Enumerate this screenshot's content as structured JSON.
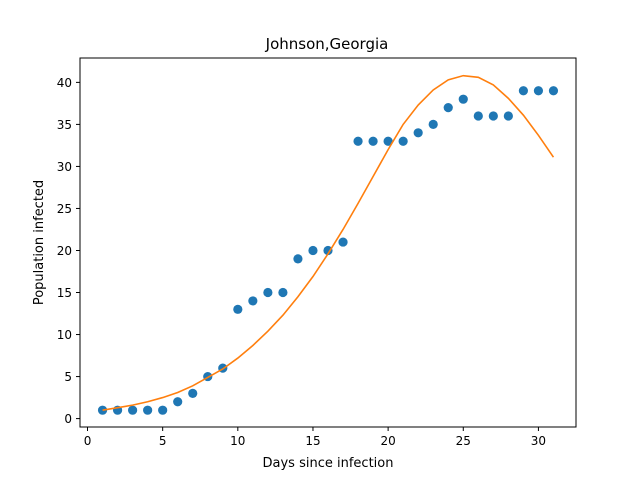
{
  "chart_data": {
    "type": "scatter",
    "title": "Johnson,Georgia",
    "xlabel": "Days since infection",
    "ylabel": "Population infected",
    "xlim": [
      -0.5,
      32.5
    ],
    "ylim": [
      -1.0,
      42.9
    ],
    "xticks": [
      0,
      5,
      10,
      15,
      20,
      25,
      30
    ],
    "yticks": [
      0,
      5,
      10,
      15,
      20,
      25,
      30,
      35,
      40
    ],
    "grid": false,
    "series": [
      {
        "kind": "scatter",
        "color": "#1f77b4",
        "x": [
          1,
          2,
          3,
          4,
          5,
          6,
          7,
          8,
          9,
          10,
          11,
          12,
          13,
          14,
          15,
          16,
          17,
          18,
          19,
          20,
          21,
          22,
          23,
          24,
          25,
          26,
          27,
          28,
          29,
          30,
          31
        ],
        "y": [
          1,
          1,
          1,
          1,
          1,
          2,
          3,
          5,
          6,
          13,
          14,
          15,
          15,
          19,
          20,
          20,
          21,
          33,
          33,
          33,
          33,
          34,
          35,
          37,
          38,
          36,
          36,
          36,
          39,
          39,
          39
        ]
      },
      {
        "kind": "line",
        "color": "#ff7f0e",
        "x": [
          1,
          2,
          3,
          4,
          5,
          6,
          7,
          8,
          9,
          10,
          11,
          12,
          13,
          14,
          15,
          16,
          17,
          18,
          19,
          20,
          21,
          22,
          23,
          24,
          25,
          26,
          27,
          28,
          29,
          30,
          31
        ],
        "y": [
          1.0,
          1.3,
          1.6,
          2.0,
          2.5,
          3.1,
          3.9,
          4.9,
          5.9,
          7.2,
          8.7,
          10.4,
          12.3,
          14.5,
          16.9,
          19.6,
          22.5,
          25.6,
          28.8,
          32.0,
          35.0,
          37.3,
          39.1,
          40.3,
          40.8,
          40.6,
          39.7,
          38.1,
          36.1,
          33.7,
          31.1
        ]
      }
    ]
  }
}
